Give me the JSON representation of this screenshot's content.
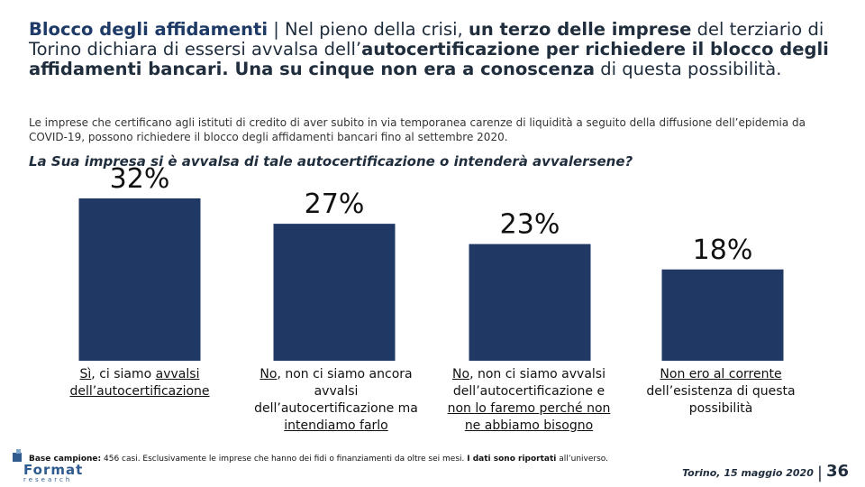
{
  "title": {
    "part1": "Blocco degli affidamenti",
    "part2": " | Nel pieno della crisi, ",
    "part3": "un terzo delle imprese",
    "part4": " del terziario di Torino dichiara di essersi avvalsa dell’",
    "part5": "autocertificazione per richiedere il blocco degli affidamenti bancari. Una su cinque non era a conoscenza",
    "part6": " di questa possibilità."
  },
  "subtitle": "Le imprese che certificano agli istituti di credito di aver subito in via temporanea carenze di liquidità a seguito della diffusione dell’epidemia da COVID-19, possono richiedere il blocco degli affidamenti bancari fino al settembre 2020.",
  "question": "La Sua impresa si è avvalsa di tale autocertificazione o intenderà avvalersene?",
  "chart_data": {
    "type": "bar",
    "categories": [
      "Sì, ci siamo avvalsi dell’autocertificazione",
      "No, non ci siamo ancora avvalsi dell’autocertificazione ma intendiamo farlo",
      "No, non ci siamo avvalsi dell’autocertificazione e non lo faremo perché non ne abbiamo bisogno",
      "Non ero al corrente dell’esistenza di questa possibilità"
    ],
    "values": [
      32,
      27,
      23,
      18
    ],
    "data_labels": [
      "32%",
      "27%",
      "23%",
      "18%"
    ],
    "ylim": [
      0,
      40
    ],
    "grid": false,
    "color": "#1f3864"
  },
  "labels": {
    "b1": {
      "l1": "Sì",
      "l2": ", ci siamo ",
      "l3": "avvalsi dell’autocertificazione"
    },
    "b2": {
      "l1": "No",
      "l2": ", non ci siamo ancora avvalsi dell’autocertificazione ma ",
      "l3": "intendiamo farlo"
    },
    "b3": {
      "l1": "No",
      "l2": ", non ci siamo avvalsi dell’autocertificazione e ",
      "l3": "non lo faremo perché non ne abbiamo bisogno"
    },
    "b4": {
      "l1": "Non ero al corrente",
      "l2": " dell’esistenza di questa possibilità"
    }
  },
  "note": {
    "label": "Base campione:",
    "text": " 456 casi. Esclusivamente le imprese che hanno dei fidi o finanziamenti da oltre sei mesi. ",
    "bold": "I dati sono riportati",
    "tail": " all’universo."
  },
  "logo": {
    "main": "Format",
    "sub": "research"
  },
  "footer": {
    "date": "Torino, 15 maggio 2020",
    "sep": "|",
    "page": "36"
  }
}
